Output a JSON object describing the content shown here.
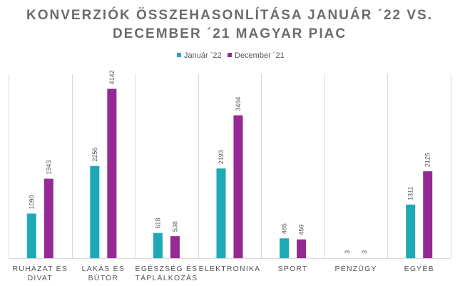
{
  "chart_data": {
    "type": "bar",
    "title_lines": [
      "KONVERZIÓK ÖSSZEHASONLÍTÁSA JANUÁR ´22 VS.",
      "DECEMBER ´21 MAGYAR PIAC"
    ],
    "categories": [
      [
        "RUHÁZAT ÉS",
        "DIVAT"
      ],
      [
        "LAKÁS ÉS",
        "BÚTOR"
      ],
      [
        "EGÉSZSÉG ÉS",
        "TÁPLÁLKOZÁS"
      ],
      [
        "ELEKTRONIKA"
      ],
      [
        "SPORT"
      ],
      [
        "PÉNZÜGY"
      ],
      [
        "EGYÉB"
      ]
    ],
    "series": [
      {
        "name": "Január ´22",
        "color": "#1fa9b6",
        "values": [
          1090,
          2256,
          618,
          2193,
          485,
          3,
          1311
        ]
      },
      {
        "name": "December  ´21",
        "color": "#952a94",
        "values": [
          1943,
          4142,
          538,
          3494,
          459,
          3,
          2125
        ]
      }
    ],
    "ylim": [
      0,
      4500
    ],
    "legend_position": "top-center",
    "grid": false,
    "category_separators": true,
    "data_labels": true,
    "data_label_rotation": "vertical"
  }
}
